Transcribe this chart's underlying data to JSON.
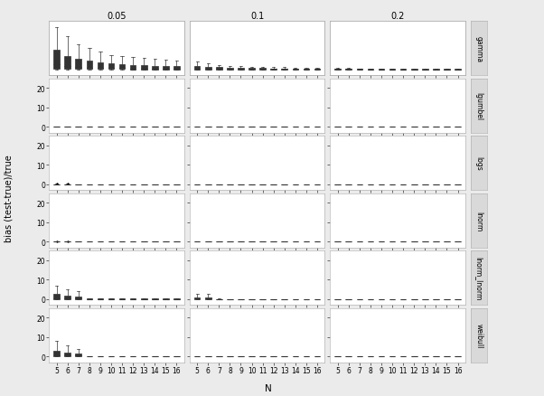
{
  "col_labels": [
    "0.05",
    "0.1",
    "0.2"
  ],
  "row_labels": [
    "gamma",
    "lgumbel",
    "logs",
    "lnorm",
    "lnorm_lnorm",
    "weibull"
  ],
  "n_values": [
    5,
    6,
    7,
    8,
    9,
    10,
    11,
    12,
    13,
    14,
    15,
    16
  ],
  "ylabel": "bias (test-true)/true",
  "xlabel": "N",
  "background_color": "#ebebeb",
  "panel_bg": "#ffffff",
  "strip_bg": "#d9d9d9",
  "grid_color": "#ffffff",
  "yticks": [
    0,
    10,
    20
  ],
  "ylim": [
    -3,
    25
  ],
  "props_vals": [
    0.05,
    0.1,
    0.2
  ]
}
